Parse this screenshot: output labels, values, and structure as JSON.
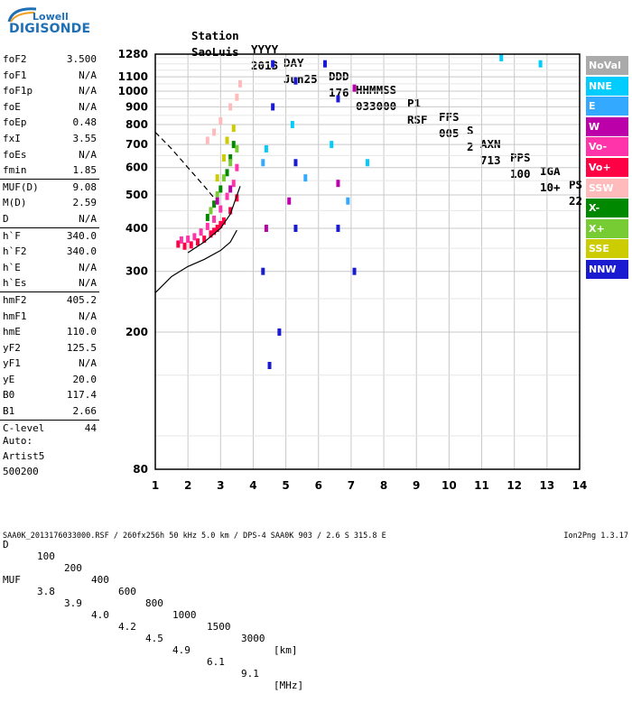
{
  "logo": {
    "line1": "Lowell",
    "line2": "DIGISONDE"
  },
  "header": {
    "row1": [
      "Station",
      "YYYY",
      "DAY",
      "DDD",
      "HHMMSS",
      "P1",
      "FFS",
      "S",
      "AXN",
      "PPS",
      "IGA",
      "PS"
    ],
    "row2": [
      "SaoLuis",
      "2013",
      "Jun25",
      "176",
      "033000",
      "RSF",
      "005",
      "2",
      "713",
      "100",
      "10+",
      "22"
    ]
  },
  "parameters": [
    {
      "name": "foF2",
      "value": "3.500"
    },
    {
      "name": "foF1",
      "value": "N/A"
    },
    {
      "name": "foF1p",
      "value": "N/A"
    },
    {
      "name": "foE",
      "value": "N/A"
    },
    {
      "name": "foEp",
      "value": "0.48"
    },
    {
      "name": "fxI",
      "value": "3.55"
    },
    {
      "name": "foEs",
      "value": "N/A"
    },
    {
      "name": "fmin",
      "value": "1.85"
    },
    {
      "name": "MUF(D)",
      "value": "9.08"
    },
    {
      "name": "M(D)",
      "value": "2.59"
    },
    {
      "name": "D",
      "value": "N/A"
    },
    {
      "name": "h`F",
      "value": "340.0"
    },
    {
      "name": "h`F2",
      "value": "340.0"
    },
    {
      "name": "h`E",
      "value": "N/A"
    },
    {
      "name": "h`Es",
      "value": "N/A"
    },
    {
      "name": "hmF2",
      "value": "405.2"
    },
    {
      "name": "hmF1",
      "value": "N/A"
    },
    {
      "name": "hmE",
      "value": "110.0"
    },
    {
      "name": "yF2",
      "value": "125.5"
    },
    {
      "name": "yF1",
      "value": "N/A"
    },
    {
      "name": "yE",
      "value": "20.0"
    },
    {
      "name": "B0",
      "value": "117.4"
    },
    {
      "name": "B1",
      "value": "2.66"
    },
    {
      "name": "C-level",
      "value": "44"
    }
  ],
  "autoscaling": {
    "line1": "Auto:",
    "line2": "Artist5",
    "line3": "500200"
  },
  "muf_table": {
    "d_label": "D",
    "d_values": [
      "100",
      "200",
      "400",
      "600",
      "800",
      "1000",
      "1500",
      "3000"
    ],
    "d_unit": "[km]",
    "muf_label": "MUF",
    "muf_values": [
      "3.8",
      "3.9",
      "4.0",
      "4.2",
      "4.5",
      "4.9",
      "6.1",
      "9.1"
    ],
    "muf_unit": "[MHz]"
  },
  "footer": {
    "left": "SAA0K_2013176033000.RSF / 260fx256h 50 kHz 5.0 km / DPS-4 SAA0K 903 / 2.6 S 315.8 E",
    "right": "Ion2Png 1.3.17"
  },
  "legend": [
    {
      "label": "NoVal",
      "color": "#aaaaaa"
    },
    {
      "label": "NNE",
      "color": "#00ccff"
    },
    {
      "label": "E",
      "color": "#33aaff"
    },
    {
      "label": "W",
      "color": "#bb00aa"
    },
    {
      "label": "Vo-",
      "color": "#ff33aa"
    },
    {
      "label": "Vo+",
      "color": "#ff0044"
    },
    {
      "label": "SSW",
      "color": "#ffbbbb"
    },
    {
      "label": "X-",
      "color": "#008800"
    },
    {
      "label": "X+",
      "color": "#77cc33"
    },
    {
      "label": "SSE",
      "color": "#cccc00"
    },
    {
      "label": "NNW",
      "color": "#1a1ad0"
    }
  ],
  "chart_data": {
    "type": "scatter",
    "xlim": [
      1,
      14
    ],
    "ylim": [
      80,
      1280
    ],
    "x_ticks": [
      "1",
      "2",
      "3",
      "4",
      "5",
      "6",
      "7",
      "8",
      "9",
      "10",
      "11",
      "12",
      "13",
      "14"
    ],
    "y_ticks": [
      "80",
      "200",
      "300",
      "400",
      "500",
      "600",
      "700",
      "800",
      "900",
      "1000",
      "1100",
      "1280"
    ],
    "grid": true,
    "y_scale": "log",
    "series": [
      {
        "color": "#ff0044",
        "points": [
          [
            1.7,
            360
          ],
          [
            1.9,
            355
          ],
          [
            2.1,
            358
          ],
          [
            2.3,
            365
          ],
          [
            2.5,
            372
          ],
          [
            2.7,
            385
          ],
          [
            2.9,
            400
          ],
          [
            3.1,
            420
          ],
          [
            3.3,
            450
          ],
          [
            3.5,
            490
          ],
          [
            2.8,
            392
          ],
          [
            3.0,
            410
          ]
        ]
      },
      {
        "color": "#ff33aa",
        "points": [
          [
            1.8,
            370
          ],
          [
            2.0,
            372
          ],
          [
            2.2,
            378
          ],
          [
            2.4,
            390
          ],
          [
            2.6,
            405
          ],
          [
            2.8,
            425
          ],
          [
            3.0,
            455
          ],
          [
            3.2,
            495
          ],
          [
            3.4,
            540
          ],
          [
            3.5,
            600
          ]
        ]
      },
      {
        "color": "#008800",
        "points": [
          [
            2.6,
            430
          ],
          [
            2.8,
            470
          ],
          [
            3.0,
            520
          ],
          [
            3.2,
            580
          ],
          [
            3.3,
            640
          ],
          [
            3.4,
            700
          ]
        ]
      },
      {
        "color": "#77cc33",
        "points": [
          [
            2.7,
            450
          ],
          [
            2.9,
            500
          ],
          [
            3.1,
            560
          ],
          [
            3.3,
            620
          ],
          [
            3.5,
            680
          ]
        ]
      },
      {
        "color": "#cccc00",
        "points": [
          [
            2.9,
            560
          ],
          [
            3.1,
            640
          ],
          [
            3.2,
            720
          ],
          [
            3.4,
            780
          ]
        ]
      },
      {
        "color": "#ffbbbb",
        "points": [
          [
            2.6,
            720
          ],
          [
            2.8,
            760
          ],
          [
            3.0,
            820
          ],
          [
            3.3,
            900
          ],
          [
            3.5,
            960
          ],
          [
            3.6,
            1050
          ]
        ]
      },
      {
        "color": "#bb00aa",
        "points": [
          [
            2.9,
            480
          ],
          [
            3.3,
            520
          ],
          [
            4.4,
            400
          ],
          [
            5.1,
            480
          ],
          [
            6.6,
            540
          ],
          [
            7.1,
            1020
          ]
        ]
      },
      {
        "color": "#1a1ad0",
        "points": [
          [
            4.3,
            300
          ],
          [
            4.6,
            900
          ],
          [
            4.6,
            1200
          ],
          [
            5.3,
            1070
          ],
          [
            5.3,
            620
          ],
          [
            6.2,
            1200
          ],
          [
            6.6,
            950
          ],
          [
            7.1,
            300
          ],
          [
            4.5,
            160
          ],
          [
            4.8,
            200
          ],
          [
            5.3,
            400
          ],
          [
            6.6,
            400
          ]
        ]
      },
      {
        "color": "#00ccff",
        "points": [
          [
            4.4,
            680
          ],
          [
            5.2,
            800
          ],
          [
            6.4,
            700
          ],
          [
            7.5,
            620
          ],
          [
            11.6,
            1250
          ],
          [
            12.8,
            1200
          ]
        ]
      },
      {
        "color": "#33aaff",
        "points": [
          [
            4.3,
            620
          ],
          [
            5.6,
            560
          ],
          [
            6.9,
            480
          ]
        ]
      }
    ],
    "curves": [
      {
        "style": "solid",
        "points": [
          [
            1,
            260
          ],
          [
            1.5,
            290
          ],
          [
            2,
            310
          ],
          [
            2.5,
            325
          ],
          [
            3,
            345
          ],
          [
            3.3,
            365
          ],
          [
            3.5,
            395
          ]
        ]
      },
      {
        "style": "dashed",
        "points": [
          [
            1,
            760
          ],
          [
            1.5,
            680
          ],
          [
            2,
            600
          ],
          [
            2.5,
            530
          ],
          [
            2.8,
            490
          ]
        ]
      },
      {
        "style": "solid",
        "points": [
          [
            2,
            340
          ],
          [
            2.5,
            365
          ],
          [
            3,
            400
          ],
          [
            3.3,
            440
          ],
          [
            3.6,
            530
          ]
        ]
      }
    ]
  }
}
